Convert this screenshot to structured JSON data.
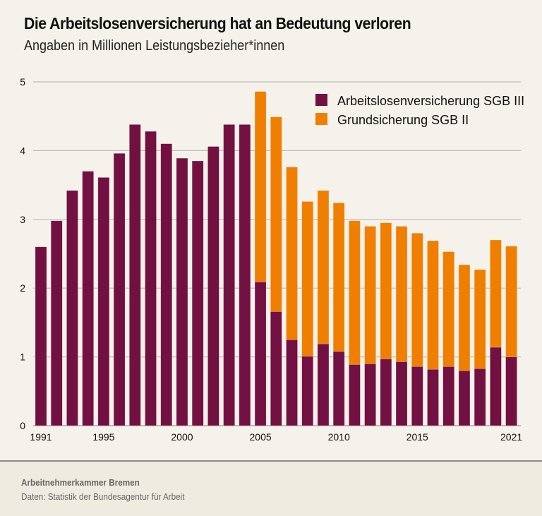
{
  "header": {
    "title": "Die Arbeitslosenversicherung hat an Bedeutung verloren",
    "subtitle": "Angaben in Millionen Leistungsbezieher*innen"
  },
  "footer": {
    "publisher": "Arbeitnehmerkammer Bremen",
    "source": "Daten: Statistik der Bundesagentur für Arbeit"
  },
  "colors": {
    "sgb3": "#731042",
    "sgb2": "#f07f00",
    "grid": "#bdbbb4",
    "background": "#f4f2ea"
  },
  "chart_data": {
    "type": "bar",
    "stacked": true,
    "title": "Die Arbeitslosenversicherung hat an Bedeutung verloren",
    "subtitle": "Angaben in Millionen Leistungsbezieher*innen",
    "xlabel": "",
    "ylabel": "",
    "ylim": [
      0,
      5
    ],
    "yticks": [
      0,
      1,
      2,
      3,
      4,
      5
    ],
    "xtick_labels": [
      "1991",
      "1995",
      "2000",
      "2005",
      "2010",
      "2015",
      "2021"
    ],
    "grid": true,
    "legend_position": "top-right",
    "categories": [
      1991,
      1992,
      1993,
      1994,
      1995,
      1996,
      1997,
      1998,
      1999,
      2000,
      2001,
      2002,
      2003,
      2004,
      2005,
      2006,
      2007,
      2008,
      2009,
      2010,
      2011,
      2012,
      2013,
      2014,
      2015,
      2016,
      2017,
      2018,
      2019,
      2020,
      2021
    ],
    "series": [
      {
        "name": "Arbeitslosenversicherung SGB III",
        "color": "#731042",
        "values": [
          2.6,
          2.98,
          3.42,
          3.7,
          3.61,
          3.96,
          4.38,
          4.28,
          4.1,
          3.89,
          3.85,
          4.06,
          4.38,
          4.38,
          2.09,
          1.66,
          1.25,
          1.01,
          1.19,
          1.08,
          0.89,
          0.9,
          0.97,
          0.93,
          0.86,
          0.82,
          0.86,
          0.8,
          0.83,
          1.14,
          1.0
        ]
      },
      {
        "name": "Grundsicherung SGB II",
        "color": "#f07f00",
        "values": [
          0,
          0,
          0,
          0,
          0,
          0,
          0,
          0,
          0,
          0,
          0,
          0,
          0,
          0,
          2.77,
          2.83,
          2.51,
          2.25,
          2.23,
          2.16,
          2.09,
          2.0,
          1.98,
          1.97,
          1.94,
          1.87,
          1.67,
          1.54,
          1.44,
          1.56,
          1.61
        ]
      }
    ]
  }
}
